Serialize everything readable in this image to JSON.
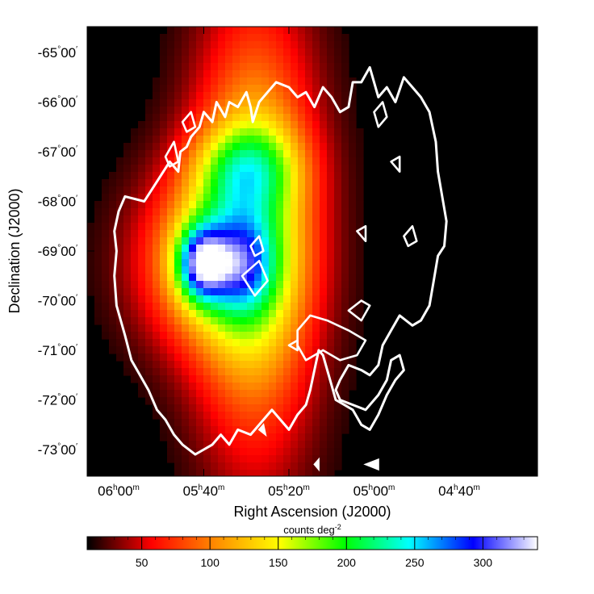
{
  "chart_data": {
    "type": "heatmap",
    "title": "",
    "xlabel": "Right Ascension (J2000)",
    "ylabel": "Declination (J2000)",
    "x_ticks": [
      {
        "ra_min": 360,
        "h": "06",
        "m": "00"
      },
      {
        "ra_min": 340,
        "h": "05",
        "m": "40"
      },
      {
        "ra_min": 320,
        "h": "05",
        "m": "20"
      },
      {
        "ra_min": 300,
        "h": "05",
        "m": "00"
      },
      {
        "ra_min": 280,
        "h": "04",
        "m": "40"
      }
    ],
    "y_ticks": [
      {
        "dec": -65,
        "label": "-65",
        "min": "00"
      },
      {
        "dec": -66,
        "label": "-66",
        "min": "00"
      },
      {
        "dec": -67,
        "label": "-67",
        "min": "00"
      },
      {
        "dec": -68,
        "label": "-68",
        "min": "00"
      },
      {
        "dec": -69,
        "label": "-69",
        "min": "00"
      },
      {
        "dec": -70,
        "label": "-70",
        "min": "00"
      },
      {
        "dec": -71,
        "label": "-71",
        "min": "00"
      },
      {
        "dec": -72,
        "label": "-72",
        "min": "00"
      },
      {
        "dec": -73,
        "label": "-73",
        "min": "00"
      }
    ],
    "colorbar": {
      "label": "counts deg",
      "label_exponent": "-2",
      "range": [
        10,
        340
      ],
      "ticks": [
        "50",
        "100",
        "150",
        "200",
        "250",
        "300"
      ],
      "tick_values": [
        50,
        100,
        150,
        200,
        250,
        300
      ],
      "colors": [
        "#000000",
        "#ff0000",
        "#ff8c00",
        "#ffff00",
        "#00ff00",
        "#00ffff",
        "#0000ff",
        "#ffffff"
      ]
    },
    "blobs": [
      {
        "ra": 328,
        "dec": -68.6,
        "s": 140,
        "sx": 2.5,
        "sy": 3.0
      },
      {
        "ra": 338,
        "dec": -69.2,
        "s": 120,
        "sx": 3.0,
        "sy": 1.2
      },
      {
        "ra": 340.5,
        "dec": -69.25,
        "s": 170,
        "sx": 1.0,
        "sy": 0.5
      },
      {
        "ra": 331,
        "dec": -69.3,
        "s": 70,
        "sx": 1.2,
        "sy": 0.6
      },
      {
        "ra": 330,
        "dec": -67.3,
        "s": 80,
        "sx": 2.2,
        "sy": 0.6
      }
    ],
    "background": 12
  }
}
